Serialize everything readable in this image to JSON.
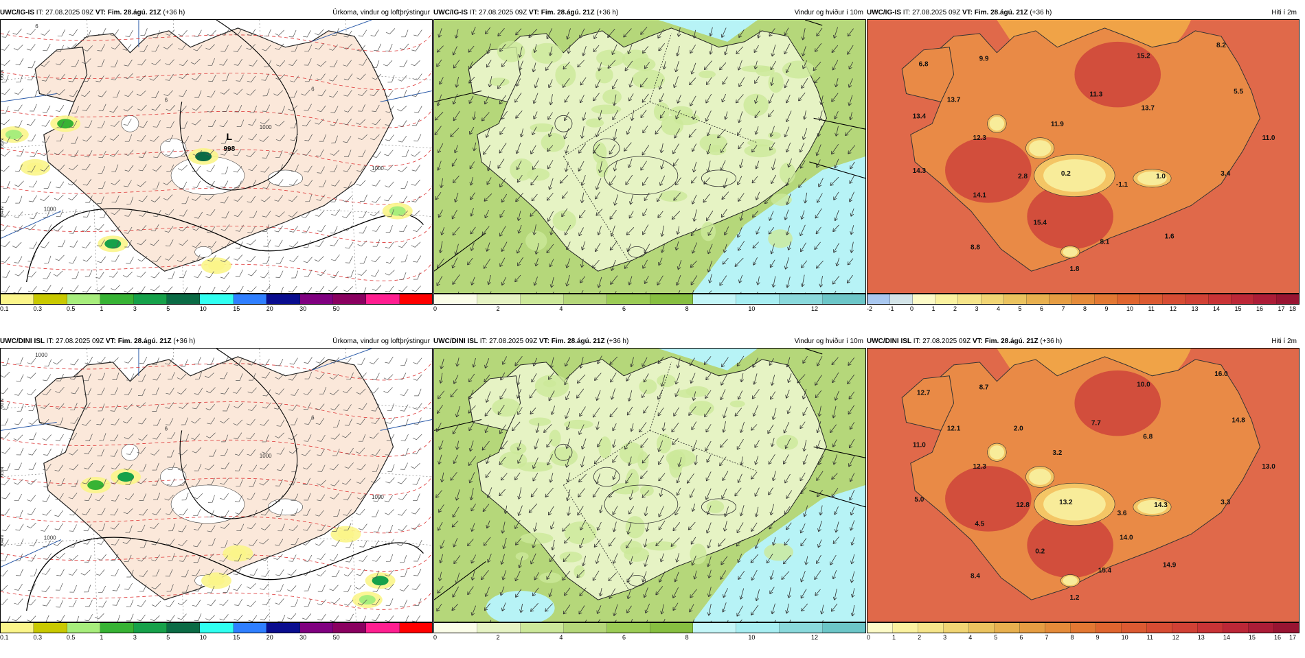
{
  "colors": {
    "land_precip": "#fbe8da",
    "sea_precip": "#ffffff",
    "wind_green": "#b5d77a",
    "wind_light": "#e6f3c4",
    "wind_cyan": "#b7f3f6",
    "temp_warm": "#e0694a",
    "temp_orange": "#f0a347",
    "temp_yellow": "#f8ec9a",
    "temp_red": "#c93a3a"
  },
  "panels": [
    {
      "id": "igis-precip",
      "model": "UWC/IG-IS",
      "it_label": "IT:",
      "it_value": "27.08.2025 09Z",
      "vt_label": "VT:",
      "vt_value": "Fim. 28.ágú. 21Z",
      "lead": "(+36 h)",
      "description": "Úrkoma, vindur og loftþrýstingur",
      "type": "precip",
      "low_label": "L",
      "low_value": "998",
      "isobars": [
        "1000",
        "1000",
        "1000",
        "6",
        "6",
        "6"
      ],
      "lat_labels": [
        "66N",
        "65N",
        "64N"
      ],
      "colorbar": {
        "colors": [
          "#fbf58a",
          "#c9c900",
          "#a7ed7c",
          "#37b334",
          "#16a14a",
          "#0b6b45",
          "#30fff0",
          "#2f7fff",
          "#0a0d8f",
          "#800080",
          "#8a0060",
          "#ff1e90",
          "#ff0000"
        ],
        "ticks": [
          "0.1",
          "0.3",
          "0.5",
          "1",
          "3",
          "5",
          "10",
          "15",
          "20",
          "30",
          "50"
        ]
      }
    },
    {
      "id": "igis-wind",
      "model": "UWC/IG-IS",
      "it_label": "IT:",
      "it_value": "27.08.2025 09Z",
      "vt_label": "VT:",
      "vt_value": "Fim. 28.ágú. 21Z",
      "lead": "(+36 h)",
      "description": "Vindur og hviður í 10m",
      "type": "wind",
      "colorbar": {
        "colors": [
          "#fbfde9",
          "#e6f3c4",
          "#cce89a",
          "#b5d77a",
          "#9ccc56",
          "#87bf41",
          "#c4f6f8",
          "#a8eef2",
          "#8ad9dc",
          "#6cc6c8"
        ],
        "ticks": [
          "0",
          "2",
          "4",
          "6",
          "8",
          "10",
          "12"
        ]
      }
    },
    {
      "id": "igis-temp",
      "model": "UWC/IG-IS",
      "it_label": "IT:",
      "it_value": "27.08.2025 09Z",
      "vt_label": "VT:",
      "vt_value": "Fim. 28.ágú. 21Z",
      "lead": "(+36 h)",
      "description": "Hiti í 2m",
      "type": "temp",
      "temps": [
        "6.8",
        "9.9",
        "15.2",
        "8.2",
        "13.7",
        "11.3",
        "13.7",
        "5.5",
        "13.4",
        "11.9",
        "11.0",
        "12.3",
        "14.3",
        "2.8",
        "0.2",
        "-1.1",
        "1.0",
        "3.4",
        "14.1",
        "15.4",
        "8.1",
        "1.6",
        "8.8",
        "1.8"
      ],
      "colorbar": {
        "colors": [
          "#a9c8f0",
          "#d3e4e8",
          "#fdfbc8",
          "#fbf2a0",
          "#f6e58a",
          "#f1d574",
          "#ebc35f",
          "#e8b04f",
          "#e69d43",
          "#e58b3a",
          "#e37833",
          "#e0652f",
          "#dc5a32",
          "#d74c33",
          "#d14135",
          "#c93336",
          "#bc2737",
          "#ac1c37",
          "#981432"
        ],
        "ticks": [
          "-2",
          "-1",
          "0",
          "1",
          "2",
          "3",
          "4",
          "5",
          "6",
          "7",
          "8",
          "9",
          "10",
          "11",
          "12",
          "13",
          "14",
          "15",
          "16",
          "17",
          "18"
        ]
      }
    },
    {
      "id": "dini-precip",
      "model": "UWC/DINI ISL",
      "it_label": "IT:",
      "it_value": "27.08.2025 09Z",
      "vt_label": "VT:",
      "vt_value": "Fim. 28.ágú. 21Z",
      "lead": "(+36 h)",
      "description": "Úrkoma, vindur og loftþrýstingur",
      "type": "precip",
      "isobars": [
        "1000",
        "1000",
        "1000",
        "1000",
        "6",
        "6"
      ],
      "lat_labels": [
        "66N",
        "65N",
        "64N"
      ],
      "colorbar": {
        "colors": [
          "#fbf58a",
          "#c9c900",
          "#a7ed7c",
          "#37b334",
          "#16a14a",
          "#0b6b45",
          "#30fff0",
          "#2f7fff",
          "#0a0d8f",
          "#800080",
          "#8a0060",
          "#ff1e90",
          "#ff0000"
        ],
        "ticks": [
          "0.1",
          "0.3",
          "0.5",
          "1",
          "3",
          "5",
          "10",
          "15",
          "20",
          "30",
          "50"
        ]
      }
    },
    {
      "id": "dini-wind",
      "model": "UWC/DINI ISL",
      "it_label": "IT:",
      "it_value": "27.08.2025 09Z",
      "vt_label": "VT:",
      "vt_value": "Fim. 28.ágú. 21Z",
      "lead": "(+36 h)",
      "description": "Vindur og hviður í 10m",
      "type": "wind",
      "colorbar": {
        "colors": [
          "#fbfde9",
          "#e6f3c4",
          "#cce89a",
          "#b5d77a",
          "#9ccc56",
          "#87bf41",
          "#c4f6f8",
          "#a8eef2",
          "#8ad9dc",
          "#6cc6c8"
        ],
        "ticks": [
          "0",
          "2",
          "4",
          "6",
          "8",
          "10",
          "12"
        ]
      }
    },
    {
      "id": "dini-temp",
      "model": "UWC/DINI ISL",
      "it_label": "IT:",
      "it_value": "27.08.2025 09Z",
      "vt_label": "VT:",
      "vt_value": "Fim. 28.ágú. 21Z",
      "lead": "(+36 h)",
      "description": "Hiti í 2m",
      "type": "temp",
      "temps": [
        "12.7",
        "8.7",
        "10.0",
        "16.0",
        "12.1",
        "7.7",
        "6.8",
        "14.8",
        "11.0",
        "3.2",
        "13.0",
        "12.3",
        "5.0",
        "12.8",
        "13.2",
        "3.6",
        "14.3",
        "3.3",
        "4.5",
        "0.2",
        "15.4",
        "14.9",
        "8.4",
        "1.2",
        "14.0",
        "2.0"
      ],
      "colorbar": {
        "colors": [
          "#fdfbc8",
          "#fbf2a0",
          "#f6e58a",
          "#f1d574",
          "#ebc35f",
          "#e8b04f",
          "#e69d43",
          "#e58b3a",
          "#e37833",
          "#e0652f",
          "#dc5a32",
          "#d74c33",
          "#d14135",
          "#c93336",
          "#bc2737",
          "#ac1c37",
          "#981432"
        ],
        "ticks": [
          "0",
          "1",
          "2",
          "3",
          "4",
          "5",
          "6",
          "7",
          "8",
          "9",
          "10",
          "11",
          "12",
          "13",
          "14",
          "15",
          "16",
          "17"
        ]
      }
    }
  ]
}
